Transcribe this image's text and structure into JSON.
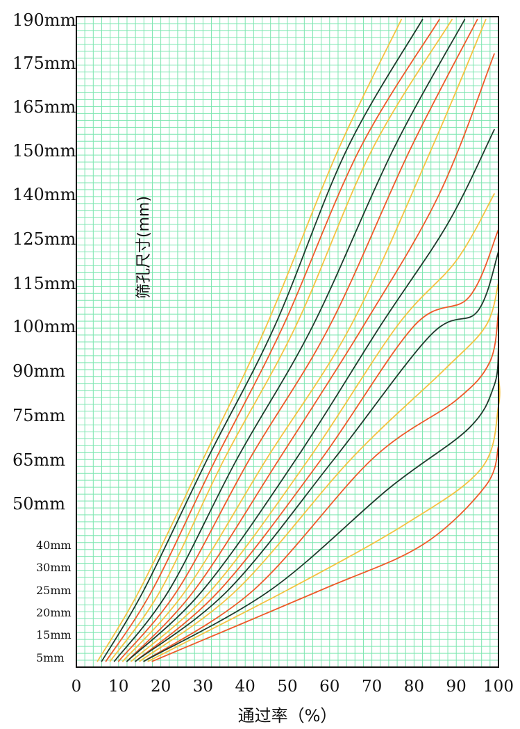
{
  "chart_data": {
    "type": "line",
    "xlabel": "通过率（%）",
    "ylabel": "筛孔尺寸(mm)",
    "xlim": [
      0,
      100
    ],
    "grid": true,
    "grid_color": "#7de6b0",
    "colors": {
      "orange": "#f5c242",
      "red": "#ef5a2a",
      "dark": "#1f3a2c"
    },
    "x_ticks": [
      "0",
      "10",
      "20",
      "30",
      "40",
      "50",
      "60",
      "70",
      "80",
      "90",
      "100"
    ],
    "y_ticks_large": [
      {
        "label": "190mm",
        "value": 190
      },
      {
        "label": "175mm",
        "value": 175
      },
      {
        "label": "165mm",
        "value": 165
      },
      {
        "label": "150mm",
        "value": 150
      },
      {
        "label": "140mm",
        "value": 140
      },
      {
        "label": "125mm",
        "value": 125
      },
      {
        "label": "115mm",
        "value": 115
      },
      {
        "label": "100mm",
        "value": 100
      },
      {
        "label": "90mm",
        "value": 90
      },
      {
        "label": "75mm",
        "value": 75
      },
      {
        "label": "65mm",
        "value": 65
      },
      {
        "label": "50mm",
        "value": 50
      }
    ],
    "y_ticks_small": [
      {
        "label": "40mm",
        "value": 40
      },
      {
        "label": "30mm",
        "value": 30
      },
      {
        "label": "25mm",
        "value": 25
      },
      {
        "label": "20mm",
        "value": 20
      },
      {
        "label": "15mm",
        "value": 15
      },
      {
        "label": "5mm",
        "value": 5
      }
    ],
    "series": [
      {
        "color": "orange",
        "points": [
          [
            5,
            3
          ],
          [
            15,
            25
          ],
          [
            30,
            65
          ],
          [
            45,
            100
          ],
          [
            62,
            150
          ],
          [
            77,
            190
          ]
        ]
      },
      {
        "color": "dark",
        "points": [
          [
            6,
            3
          ],
          [
            16,
            25
          ],
          [
            31,
            65
          ],
          [
            47,
            100
          ],
          [
            64,
            150
          ],
          [
            82,
            190
          ]
        ]
      },
      {
        "color": "red",
        "points": [
          [
            7,
            3
          ],
          [
            18,
            25
          ],
          [
            33,
            65
          ],
          [
            49,
            100
          ],
          [
            67,
            150
          ],
          [
            86,
            190
          ]
        ]
      },
      {
        "color": "orange",
        "points": [
          [
            8,
            3
          ],
          [
            20,
            25
          ],
          [
            35,
            65
          ],
          [
            52,
            100
          ],
          [
            70,
            150
          ],
          [
            89,
            190
          ]
        ]
      },
      {
        "color": "dark",
        "points": [
          [
            9,
            3
          ],
          [
            22,
            25
          ],
          [
            38,
            65
          ],
          [
            56,
            100
          ],
          [
            75,
            150
          ],
          [
            92,
            190
          ]
        ]
      },
      {
        "color": "red",
        "points": [
          [
            10,
            3
          ],
          [
            24,
            25
          ],
          [
            41,
            65
          ],
          [
            60,
            100
          ],
          [
            79,
            150
          ],
          [
            95,
            190
          ]
        ]
      },
      {
        "color": "orange",
        "points": [
          [
            11,
            3
          ],
          [
            26,
            25
          ],
          [
            45,
            65
          ],
          [
            65,
            100
          ],
          [
            84,
            150
          ],
          [
            97,
            190
          ]
        ]
      },
      {
        "color": "red",
        "points": [
          [
            12,
            3
          ],
          [
            28,
            25
          ],
          [
            48,
            65
          ],
          [
            68,
            100
          ],
          [
            86,
            140
          ],
          [
            99,
            178
          ]
        ]
      },
      {
        "color": "dark",
        "points": [
          [
            12,
            3
          ],
          [
            30,
            25
          ],
          [
            52,
            65
          ],
          [
            72,
            100
          ],
          [
            88,
            130
          ],
          [
            99,
            157
          ]
        ]
      },
      {
        "color": "orange",
        "points": [
          [
            13,
            3
          ],
          [
            32,
            25
          ],
          [
            55,
            65
          ],
          [
            76,
            100
          ],
          [
            90,
            120
          ],
          [
            99,
            140
          ]
        ]
      },
      {
        "color": "red",
        "points": [
          [
            14,
            3
          ],
          [
            34,
            25
          ],
          [
            58,
            65
          ],
          [
            80,
            100
          ],
          [
            93,
            110
          ],
          [
            100,
            128
          ]
        ]
      },
      {
        "color": "dark",
        "points": [
          [
            14,
            3
          ],
          [
            36,
            25
          ],
          [
            61,
            65
          ],
          [
            84,
            98
          ],
          [
            95,
            105
          ],
          [
            100,
            122
          ]
        ]
      },
      {
        "color": "orange",
        "points": [
          [
            15,
            3
          ],
          [
            38,
            25
          ],
          [
            65,
            65
          ],
          [
            87,
            90
          ],
          [
            97,
            100
          ],
          [
            100,
            115
          ]
        ]
      },
      {
        "color": "red",
        "points": [
          [
            16,
            3
          ],
          [
            42,
            25
          ],
          [
            70,
            65
          ],
          [
            90,
            80
          ],
          [
            98,
            92
          ],
          [
            100,
            105
          ]
        ]
      },
      {
        "color": "dark",
        "points": [
          [
            16,
            3
          ],
          [
            46,
            25
          ],
          [
            74,
            55
          ],
          [
            93,
            72
          ],
          [
            99,
            85
          ],
          [
            100,
            95
          ]
        ]
      },
      {
        "color": "orange",
        "points": [
          [
            17,
            3
          ],
          [
            50,
            25
          ],
          [
            78,
            45
          ],
          [
            96,
            62
          ],
          [
            100,
            78
          ],
          [
            100,
            88
          ]
        ]
      },
      {
        "color": "red",
        "points": [
          [
            18,
            3
          ],
          [
            58,
            25
          ],
          [
            82,
            40
          ],
          [
            97,
            56
          ],
          [
            100,
            68
          ]
        ]
      }
    ]
  }
}
